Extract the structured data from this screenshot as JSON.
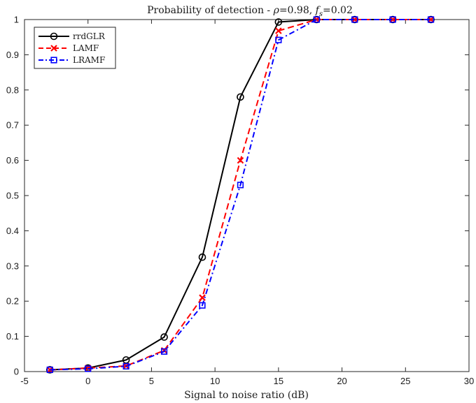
{
  "chart_data": {
    "type": "line",
    "title": {
      "prefix": "Probability of detection - ",
      "rho_symbol": "ρ",
      "rho_value": "=0.98, ",
      "f_symbol": "f",
      "f_subscript": "s",
      "f_value": "=0.02"
    },
    "xlabel": "Signal to noise ratio (dB)",
    "ylabel": "",
    "xlim": [
      -5,
      30
    ],
    "ylim": [
      0,
      1
    ],
    "xticks": [
      "-5",
      "0",
      "5",
      "10",
      "15",
      "20",
      "25",
      "30"
    ],
    "yticks": [
      "0",
      "0.1",
      "0.2",
      "0.3",
      "0.4",
      "0.5",
      "0.6",
      "0.7",
      "0.8",
      "0.9",
      "1"
    ],
    "grid": false,
    "legend_position": "top-left",
    "x": [
      -3,
      0,
      3,
      6,
      9,
      12,
      15,
      18,
      21,
      24,
      27
    ],
    "series": [
      {
        "name": "rrdGLR",
        "color": "#000000",
        "dash": "solid",
        "marker": "circle",
        "values": [
          0.005,
          0.01,
          0.033,
          0.098,
          0.325,
          0.78,
          0.993,
          1.0,
          1.0,
          1.0,
          1.0
        ]
      },
      {
        "name": "LAMF",
        "color": "#ff0000",
        "dash": "dashed",
        "marker": "x",
        "values": [
          0.005,
          0.01,
          0.016,
          0.06,
          0.21,
          0.6,
          0.968,
          1.0,
          1.0,
          1.0,
          1.0
        ]
      },
      {
        "name": "LRAMF",
        "color": "#0000ff",
        "dash": "dashdot",
        "marker": "square",
        "values": [
          0.005,
          0.008,
          0.015,
          0.057,
          0.188,
          0.53,
          0.942,
          1.0,
          1.0,
          1.0,
          1.0
        ]
      }
    ]
  }
}
